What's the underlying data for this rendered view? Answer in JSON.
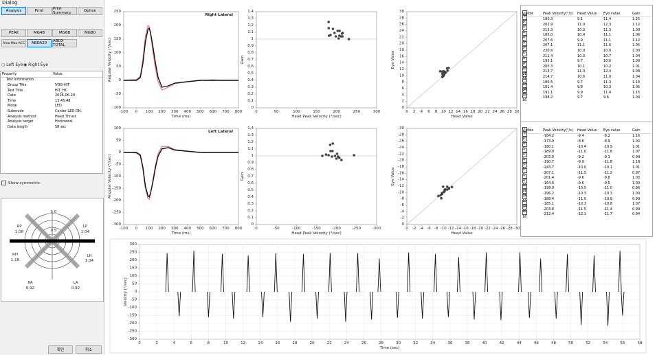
{
  "window_title": "Dialog",
  "tabs": [
    "Analysis",
    "Print",
    "Print Summary",
    "Option"
  ],
  "sub_tabs": [
    "PEAK",
    "MG4B",
    "MG6B",
    "MG80",
    "Area Max ACC",
    "ABDA20",
    "ABDX TOTAL"
  ],
  "eye_options": [
    "Left Eye",
    "Right Eye"
  ],
  "property_table": {
    "headers": [
      "Property",
      "Value"
    ],
    "group": "Test Information",
    "rows": [
      [
        "Group Title",
        "VOG-HIT"
      ],
      [
        "Test Title",
        "HIT_HC"
      ],
      [
        "Date",
        "2016-06-20"
      ],
      [
        "Time",
        "13:45:48"
      ],
      [
        "Mode",
        "LED"
      ],
      [
        "Submode",
        "Center LED ON"
      ],
      [
        "Analysis method",
        "Head Thrust"
      ],
      [
        "Analysis target",
        "Horizontal"
      ],
      [
        "Data length",
        "58 sec"
      ]
    ]
  },
  "show_symmetric": "Show symmetric",
  "polar": {
    "rings": [
      "1.0",
      "0.5"
    ],
    "labels": [
      {
        "name": "RP",
        "value": "1.08"
      },
      {
        "name": "LP",
        "value": "1.04"
      },
      {
        "name": "RH",
        "value": "1.18"
      },
      {
        "name": "LH",
        "value": "1.04"
      },
      {
        "name": "RA",
        "value": "0.92"
      },
      {
        "name": "LA",
        "value": "0.92"
      }
    ]
  },
  "buttons": [
    "확인",
    "취소"
  ],
  "chart_data": [
    {
      "type": "line",
      "title": "Right Lateral",
      "x_label": "Time (ms)",
      "y_label": "Angular Velocity (°/sec)",
      "x": [
        -100,
        -50,
        0,
        30,
        50,
        70,
        90,
        100,
        110,
        130,
        150,
        170,
        200,
        250,
        300,
        400,
        500,
        600,
        700,
        800
      ],
      "series": [
        {
          "color": "#e07b7b",
          "values": [
            0,
            2,
            3,
            15,
            75,
            160,
            200,
            195,
            170,
            100,
            40,
            -5,
            -35,
            -25,
            -12,
            -5,
            0,
            2,
            0,
            0
          ]
        },
        {
          "color": "#111111",
          "values": [
            0,
            0,
            0,
            10,
            60,
            140,
            185,
            190,
            175,
            120,
            60,
            10,
            -25,
            -20,
            -10,
            -5,
            0,
            0,
            0,
            0
          ]
        }
      ],
      "xlim": [
        -100,
        800
      ],
      "ylim": [
        -100,
        250
      ],
      "xticks": [
        -100,
        0,
        100,
        200,
        300,
        400,
        500,
        600,
        700,
        800
      ],
      "yticks": [
        250,
        200,
        150,
        100,
        50,
        0,
        -50,
        -100
      ]
    },
    {
      "type": "scatter",
      "x_label": "Head Peak Velocity (°/sec)",
      "y_label": "Gain",
      "x": [
        180.3,
        202.9,
        215.3,
        185.0,
        207.6,
        207.1,
        230.6,
        211.4,
        195.1,
        205.3,
        213.7,
        214.7,
        180.5,
        181.4,
        191.1,
        198.2
      ],
      "series": [
        {
          "color": "#444444",
          "values": [
            1.25,
            1.12,
            1.09,
            1.06,
            1.12,
            1.05,
            1.0,
            1.04,
            1.09,
            1.01,
            1.08,
            1.04,
            1.16,
            1.05,
            1.15,
            1.04
          ]
        }
      ],
      "xlim": [
        0,
        300
      ],
      "ylim": [
        0,
        1.4
      ],
      "xticks": [
        0,
        50,
        100,
        150,
        200,
        250,
        300
      ],
      "yticks": [
        0,
        0.1,
        0.2,
        0.3,
        0.4,
        0.5,
        0.6,
        0.7,
        0.8,
        0.9,
        1,
        1.1,
        1.2,
        1.3,
        1.4
      ],
      "ref_line": 1
    },
    {
      "type": "scatter",
      "x_label": "Head Value",
      "y_label": "Eye Value",
      "x": [
        9.1,
        11.0,
        10.3,
        10.4,
        9.9,
        11.1,
        10.0,
        10.3,
        9.7,
        10.1,
        11.4,
        10.6,
        9.7,
        9.8,
        9.9,
        9.7
      ],
      "series": [
        {
          "color": "#444444",
          "values": [
            11.4,
            12.3,
            11.3,
            11.1,
            11.1,
            11.6,
            10.0,
            10.7,
            10.6,
            10.2,
            12.4,
            11.0,
            11.3,
            10.3,
            11.4,
            9.6
          ]
        }
      ],
      "xlim": [
        0,
        30
      ],
      "ylim": [
        0,
        30
      ],
      "xticks": [
        0,
        2,
        4,
        6,
        8,
        10,
        12,
        14,
        16,
        18,
        20,
        22,
        24,
        26,
        28,
        30
      ],
      "yticks": [
        0,
        2,
        4,
        6,
        8,
        10,
        12,
        14,
        16,
        18,
        20,
        22,
        24,
        26,
        28,
        30
      ],
      "diagonal": true
    },
    {
      "type": "line",
      "title": "Left Lateral",
      "x_label": "Time (ms)",
      "y_label": "Angular Velocity (°/sec)",
      "x": [
        -100,
        -50,
        0,
        30,
        50,
        70,
        90,
        100,
        110,
        130,
        150,
        170,
        200,
        250,
        300,
        400,
        500,
        600,
        700,
        800
      ],
      "series": [
        {
          "color": "#e07b7b",
          "values": [
            0,
            0,
            -3,
            -15,
            -70,
            -150,
            -190,
            -195,
            -175,
            -110,
            -50,
            -5,
            25,
            25,
            12,
            5,
            0,
            0,
            0,
            0
          ]
        },
        {
          "color": "#111111",
          "values": [
            0,
            0,
            0,
            -10,
            -60,
            -140,
            -180,
            -185,
            -170,
            -120,
            -60,
            -15,
            15,
            20,
            10,
            5,
            0,
            0,
            0,
            0
          ]
        }
      ],
      "xlim": [
        -100,
        800
      ],
      "ylim": [
        -300,
        100
      ],
      "xticks": [
        -100,
        0,
        100,
        200,
        300,
        400,
        500,
        600,
        700,
        800
      ],
      "yticks": [
        100,
        50,
        0,
        -50,
        -100,
        -150,
        -200,
        -250,
        -300
      ]
    },
    {
      "type": "scatter",
      "x_label": "Head Peak Velocity (°/sec)",
      "y_label": "Gain",
      "x": [
        -184.2,
        -173.9,
        -180.1,
        -189.9,
        -203.9,
        -190.7,
        -243.7,
        -207.1,
        -201.4,
        -164.6,
        -199.9,
        -196.2,
        -188.4,
        -185.1,
        -203.8,
        -212.4
      ],
      "series": [
        {
          "color": "#444444",
          "values": [
            1.16,
            1.02,
            1.01,
            1.07,
            0.99,
            1.18,
            1.01,
            0.97,
            1.03,
            1.0,
            0.96,
            1.0,
            0.99,
            1.07,
            0.99,
            0.94
          ]
        }
      ],
      "xlim": [
        0,
        -300
      ],
      "ylim": [
        0,
        1.4
      ],
      "xticks": [
        0,
        -50,
        -100,
        -150,
        -200,
        -250,
        -300
      ],
      "yticks": [
        0,
        0.1,
        0.2,
        0.3,
        0.4,
        0.5,
        0.6,
        0.7,
        0.8,
        0.9,
        1,
        1.1,
        1.2,
        1.3,
        1.4
      ],
      "ref_line": 1
    },
    {
      "type": "scatter",
      "x_label": "Head Value",
      "y_label": "Eye Value",
      "x": [
        -9.4,
        -8.6,
        -10.4,
        -11.0,
        -9.2,
        -9.9,
        -10.0,
        -11.5,
        -9.6,
        -9.6,
        -10.5,
        -10.3,
        -11.0,
        -10.3,
        -11.5,
        -12.3
      ],
      "series": [
        {
          "color": "#444444",
          "values": [
            -8.2,
            -8.9,
            -10.9,
            -11.8,
            -9.1,
            -11.8,
            -10.1,
            -11.2,
            -9.8,
            -9.5,
            -11.0,
            -10.3,
            -10.9,
            -10.8,
            -11.4,
            -11.7
          ]
        }
      ],
      "xlim": [
        0,
        -30
      ],
      "ylim": [
        0,
        -30
      ],
      "xticks": [
        0,
        -2,
        -4,
        -6,
        -8,
        -10,
        -12,
        -14,
        -16,
        -18,
        -20,
        -22,
        -24,
        -26,
        -28,
        -30
      ],
      "yticks": [
        0,
        -2,
        -4,
        -6,
        -8,
        -10,
        -12,
        -14,
        -16,
        -18,
        -20,
        -22,
        -24,
        -26,
        -28,
        -30
      ],
      "diagonal": true
    },
    {
      "type": "impulse",
      "x_label": "Time (sec)",
      "y_label": "Velocity (°/sec)",
      "grid": true,
      "x": [
        3.2,
        4.6,
        6.3,
        8.0,
        9.6,
        10.9,
        12.6,
        14.3,
        15.8,
        17.5,
        19.0,
        20.6,
        22.1,
        23.9,
        25.3,
        26.9,
        27.8,
        29.9,
        31.2,
        32.8,
        34.3,
        35.8,
        37.0,
        38.8,
        40.2,
        41.9,
        44.1,
        45.2,
        46.5,
        48.3,
        49.6,
        51.2,
        52.7,
        54.3,
        55.7,
        56.0
      ],
      "series": [
        {
          "color": "#111111",
          "values": [
            245,
            -155,
            260,
            -160,
            240,
            -170,
            230,
            -160,
            245,
            -190,
            240,
            -170,
            245,
            -190,
            245,
            -175,
            210,
            -165,
            250,
            -170,
            240,
            -160,
            220,
            -175,
            250,
            -180,
            250,
            -165,
            210,
            -170,
            240,
            -210,
            230,
            -215,
            260,
            -150
          ]
        }
      ],
      "xlim": [
        0,
        58
      ],
      "ylim": [
        -300,
        300
      ],
      "xticks": [
        0,
        2,
        4,
        6,
        8,
        10,
        12,
        14,
        16,
        18,
        20,
        22,
        24,
        26,
        28,
        30,
        32,
        34,
        36,
        38,
        40,
        42,
        44,
        46,
        48,
        50,
        52,
        54,
        56,
        58
      ],
      "yticks": [
        -300,
        -250,
        -200,
        -150,
        -100,
        -50,
        0,
        50,
        100,
        150,
        200,
        250,
        300
      ]
    }
  ],
  "tables": [
    {
      "headers": [
        "Visible",
        "Peak Velocity(°/s)",
        "Head Value",
        "Eye value",
        "Gain"
      ],
      "rows": [
        [
          "1",
          "180.3",
          "9.1",
          "11.4",
          "1.25"
        ],
        [
          "2",
          "202.9",
          "11.0",
          "12.3",
          "1.12"
        ],
        [
          "3",
          "215.3",
          "10.3",
          "11.3",
          "1.09"
        ],
        [
          "4",
          "185.0",
          "10.4",
          "11.1",
          "1.06"
        ],
        [
          "5",
          "207.6",
          "9.9",
          "11.1",
          "1.12"
        ],
        [
          "6",
          "207.1",
          "11.1",
          "11.6",
          "1.05"
        ],
        [
          "7",
          "230.6",
          "10.0",
          "10.0",
          "1.00"
        ],
        [
          "8",
          "211.4",
          "10.3",
          "10.7",
          "1.04"
        ],
        [
          "9",
          "195.1",
          "9.7",
          "10.6",
          "1.09"
        ],
        [
          "10",
          "205.3",
          "10.1",
          "10.2",
          "1.01"
        ],
        [
          "11",
          "213.7",
          "11.4",
          "12.4",
          "1.08"
        ],
        [
          "12",
          "214.7",
          "10.6",
          "11.0",
          "1.04"
        ],
        [
          "13",
          "180.5",
          "9.7",
          "11.3",
          "1.16"
        ],
        [
          "14",
          "181.4",
          "9.8",
          "10.3",
          "1.05"
        ],
        [
          "15",
          "191.1",
          "9.9",
          "11.4",
          "1.15"
        ],
        [
          "16",
          "198.2",
          "9.7",
          "9.6",
          "1.04"
        ]
      ]
    },
    {
      "headers": [
        "Visible",
        "Peak Velocity(°/s)",
        "Head Value",
        "Eye value",
        "Gain"
      ],
      "rows": [
        [
          "1",
          "-184.2",
          "-9.4",
          "-8.2",
          "1.16"
        ],
        [
          "2",
          "-173.9",
          "-8.6",
          "-8.9",
          "1.02"
        ],
        [
          "3",
          "-180.1",
          "-10.4",
          "-10.9",
          "1.01"
        ],
        [
          "4",
          "-189.9",
          "-11.0",
          "-11.8",
          "1.07"
        ],
        [
          "5",
          "-203.9",
          "-9.2",
          "-9.1",
          "0.99"
        ],
        [
          "6",
          "-190.7",
          "-9.9",
          "-11.8",
          "1.18"
        ],
        [
          "7",
          "-243.7",
          "-10.0",
          "-10.1",
          "1.01"
        ],
        [
          "8",
          "-207.1",
          "-11.5",
          "-11.2",
          "0.97"
        ],
        [
          "9",
          "-201.4",
          "-9.6",
          "-9.8",
          "1.03"
        ],
        [
          "10",
          "-164.6",
          "-9.6",
          "-9.5",
          "1.00"
        ],
        [
          "11",
          "-199.9",
          "-10.5",
          "-11.0",
          "0.96"
        ],
        [
          "12",
          "-196.2",
          "-10.3",
          "-10.3",
          "1.00"
        ],
        [
          "13",
          "-188.4",
          "-11.0",
          "-10.9",
          "0.99"
        ],
        [
          "14",
          "-185.1",
          "-10.3",
          "-10.8",
          "1.07"
        ],
        [
          "15",
          "-203.8",
          "-11.5",
          "-11.4",
          "0.99"
        ],
        [
          "16",
          "-212.4",
          "-12.3",
          "-11.7",
          "0.94"
        ]
      ]
    }
  ]
}
